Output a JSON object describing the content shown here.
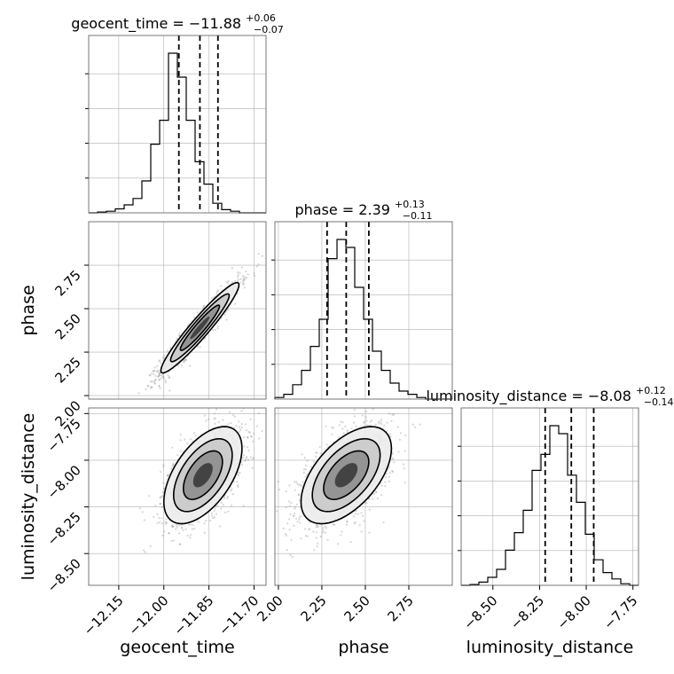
{
  "chart_data": {
    "type": "corner",
    "parameters": [
      "geocent_time",
      "phase",
      "luminosity_distance"
    ],
    "diagonal_titles": [
      {
        "param": "geocent_time",
        "label": "geocent_time = −11.88",
        "median": -11.88,
        "plus": "+0.06",
        "minus": "−0.07"
      },
      {
        "param": "phase",
        "label": "phase = 2.39",
        "median": 2.39,
        "plus": "+0.13",
        "minus": "−0.11"
      },
      {
        "param": "luminosity_distance",
        "label": "luminosity_distance = −8.08",
        "median": -8.08,
        "plus": "+0.12",
        "minus": "−0.14"
      }
    ],
    "ranges": {
      "geocent_time": [
        -12.25,
        -11.66
      ],
      "phase": [
        1.98,
        3.0
      ],
      "luminosity_distance": [
        -8.67,
        -7.72
      ]
    },
    "ticks": {
      "geocent_time": {
        "values": [
          -12.15,
          -12.0,
          -11.85,
          -11.7
        ],
        "labels": [
          "−12.15",
          "−12.00",
          "−11.85",
          "−11.70"
        ]
      },
      "phase": {
        "values": [
          2.0,
          2.25,
          2.5,
          2.75
        ],
        "labels": [
          "2.00",
          "2.25",
          "2.50",
          "2.75"
        ]
      },
      "luminosity_distance": {
        "values": [
          -8.5,
          -8.25,
          -8.0,
          -7.75
        ],
        "labels": [
          "−8.50",
          "−8.25",
          "−8.00",
          "−7.75"
        ]
      }
    },
    "quantile_lines": {
      "geocent_time": [
        -11.95,
        -11.88,
        -11.82
      ],
      "phase": [
        2.28,
        2.39,
        2.52
      ],
      "luminosity_distance": [
        -8.22,
        -8.08,
        -7.96
      ]
    },
    "histograms": {
      "geocent_time": {
        "edges_start": -12.25,
        "bin_width": 0.0295,
        "counts": [
          0,
          0.5,
          1,
          2.5,
          5,
          9,
          20,
          43,
          58,
          100,
          85,
          58,
          32,
          18,
          6,
          2,
          1,
          0,
          0,
          0
        ]
      },
      "phase": {
        "edges_start": 1.98,
        "bin_width": 0.051,
        "counts": [
          1,
          3,
          9,
          18,
          33,
          50,
          88,
          100,
          95,
          70,
          50,
          30,
          18,
          10,
          5,
          3,
          1,
          0,
          0,
          0
        ]
      },
      "luminosity_distance": {
        "edges_start": -8.67,
        "bin_width": 0.0475,
        "counts": [
          0,
          0.5,
          2,
          5,
          10,
          22,
          33,
          47,
          72,
          82,
          100,
          95,
          69,
          52,
          32,
          16,
          8,
          4,
          1,
          0
        ]
      }
    },
    "contours_2d": [
      {
        "x": "geocent_time",
        "y": "phase",
        "mean": [
          -11.88,
          2.39
        ],
        "sd": [
          0.065,
          0.13
        ],
        "rho": 0.95
      },
      {
        "x": "geocent_time",
        "y": "luminosity_distance",
        "mean": [
          -11.87,
          -8.08
        ],
        "sd": [
          0.065,
          0.13
        ],
        "rho": 0.55
      },
      {
        "x": "phase",
        "y": "luminosity_distance",
        "mean": [
          2.39,
          -8.08
        ],
        "sd": [
          0.13,
          0.13
        ],
        "rho": 0.55
      }
    ],
    "axis_labels": {
      "x": [
        "geocent_time",
        "phase",
        "luminosity_distance"
      ],
      "y": [
        "phase",
        "luminosity_distance"
      ]
    },
    "colors": {
      "line": "#000000",
      "points": "#8a8a8a",
      "grid": "#b0b0b0"
    }
  }
}
